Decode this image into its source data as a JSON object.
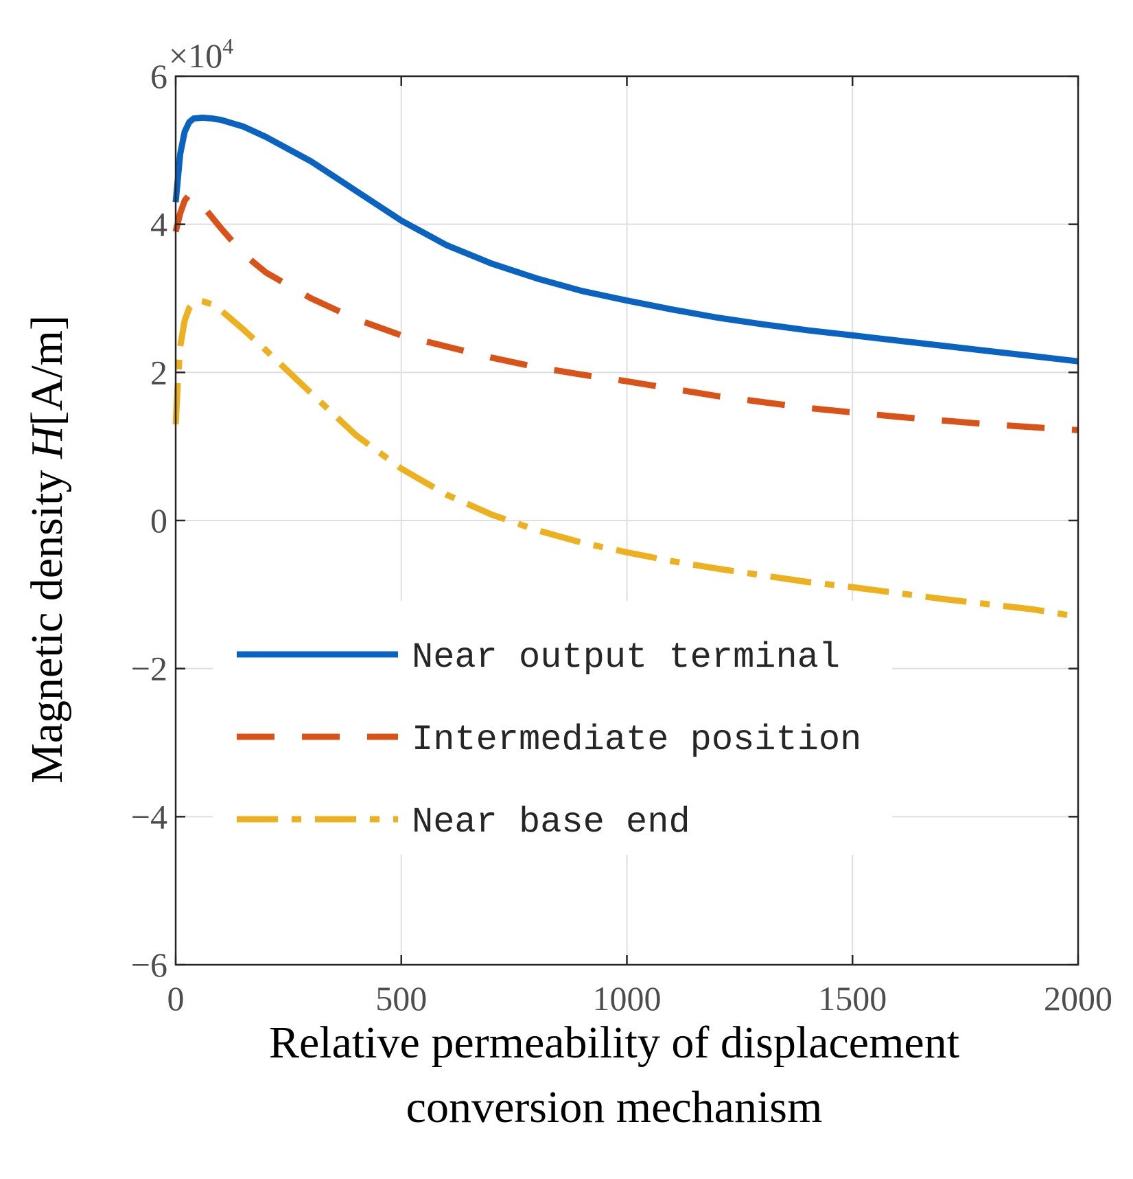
{
  "chart_data": {
    "type": "line",
    "xlabel": "Relative permeability of displacement",
    "xlabel_line2": "conversion mechanism",
    "ylabel_prefix": "Magnetic density ",
    "ylabel_var": "H",
    "ylabel_suffix": "[A/m]",
    "y_multiplier_base": "×10",
    "y_multiplier_exp": "4",
    "xlim": [
      0,
      2000
    ],
    "ylim": [
      -6,
      6
    ],
    "xticks": [
      0,
      500,
      1000,
      1500,
      2000
    ],
    "xtick_labels": [
      "0",
      "500",
      "1000",
      "1500",
      "2000"
    ],
    "yticks": [
      -6,
      -4,
      -2,
      0,
      2,
      4,
      6
    ],
    "ytick_labels": [
      "−6",
      "−4",
      "−2",
      "0",
      "2",
      "4",
      "6"
    ],
    "grid": true,
    "legend_position": "bottom-left",
    "series": [
      {
        "name": "Near output terminal",
        "color": "#0b63c1",
        "style": "solid",
        "x": [
          0,
          10,
          20,
          30,
          40,
          60,
          80,
          100,
          150,
          200,
          300,
          400,
          500,
          600,
          700,
          800,
          900,
          1000,
          1100,
          1200,
          1300,
          1400,
          1500,
          1600,
          1700,
          1800,
          1900,
          2000
        ],
        "y": [
          4.3,
          4.95,
          5.25,
          5.38,
          5.43,
          5.44,
          5.43,
          5.41,
          5.32,
          5.18,
          4.85,
          4.45,
          4.05,
          3.72,
          3.47,
          3.27,
          3.1,
          2.97,
          2.85,
          2.74,
          2.65,
          2.57,
          2.5,
          2.43,
          2.36,
          2.29,
          2.22,
          2.15
        ]
      },
      {
        "name": "Intermediate position",
        "color": "#d95319",
        "style": "dashed",
        "x": [
          0,
          10,
          20,
          30,
          40,
          60,
          80,
          100,
          150,
          200,
          300,
          400,
          500,
          600,
          700,
          800,
          900,
          1000,
          1100,
          1200,
          1300,
          1400,
          1500,
          1600,
          1700,
          1800,
          1900,
          2000
        ],
        "y": [
          3.9,
          4.15,
          4.32,
          4.4,
          4.38,
          4.25,
          4.1,
          3.95,
          3.6,
          3.35,
          3.0,
          2.72,
          2.5,
          2.35,
          2.2,
          2.07,
          1.97,
          1.88,
          1.78,
          1.68,
          1.6,
          1.52,
          1.46,
          1.4,
          1.35,
          1.3,
          1.26,
          1.22
        ]
      },
      {
        "name": "Near base end",
        "color": "#edb120",
        "style": "dashdot",
        "x": [
          0,
          5,
          10,
          20,
          30,
          40,
          50,
          60,
          80,
          100,
          150,
          200,
          300,
          400,
          500,
          600,
          700,
          800,
          900,
          1000,
          1100,
          1200,
          1300,
          1400,
          1500,
          1600,
          1700,
          1800,
          1900,
          2000
        ],
        "y": [
          1.3,
          1.9,
          2.35,
          2.7,
          2.87,
          2.94,
          2.97,
          2.96,
          2.92,
          2.84,
          2.58,
          2.3,
          1.72,
          1.15,
          0.7,
          0.35,
          0.08,
          -0.13,
          -0.3,
          -0.43,
          -0.55,
          -0.65,
          -0.74,
          -0.83,
          -0.9,
          -0.98,
          -1.06,
          -1.13,
          -1.2,
          -1.3
        ]
      }
    ]
  }
}
